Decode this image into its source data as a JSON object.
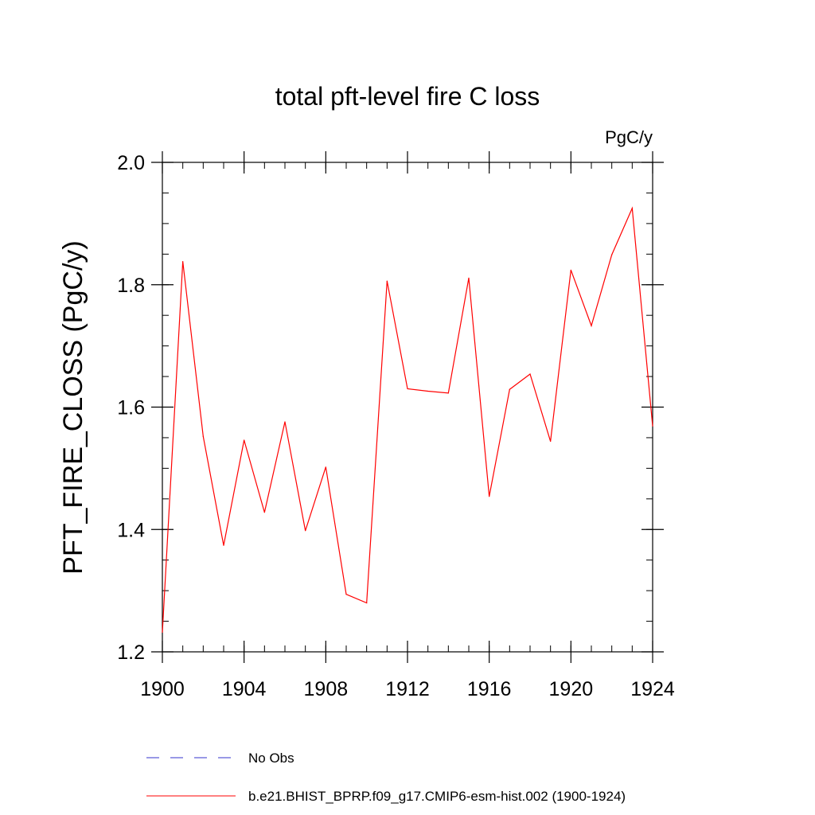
{
  "chart_data": {
    "type": "line",
    "title": "total pft-level fire C loss",
    "units": "PgC/y",
    "xlabel": "",
    "ylabel": "PFT_FIRE_CLOSS  (PgC/y)",
    "xlim": [
      1900,
      1924
    ],
    "ylim": [
      1.2,
      2.0
    ],
    "x_ticks": [
      1900,
      1904,
      1908,
      1912,
      1916,
      1920,
      1924
    ],
    "y_ticks": [
      "1.2",
      "1.4",
      "1.6",
      "1.8",
      "2.0"
    ],
    "x_minor_step": 1,
    "y_minor_step": 0.05,
    "series": [
      {
        "name": "b.e21.BHIST_BPRP.f09_g17.CMIP6-esm-hist.002 (1900-1924)",
        "color": "#ff0000",
        "style": "solid",
        "x": [
          1900,
          1901,
          1902,
          1903,
          1904,
          1905,
          1906,
          1907,
          1908,
          1909,
          1910,
          1911,
          1912,
          1913,
          1914,
          1915,
          1916,
          1917,
          1918,
          1919,
          1920,
          1921,
          1922,
          1923,
          1924
        ],
        "values": [
          1.232,
          1.838,
          1.552,
          1.374,
          1.546,
          1.428,
          1.576,
          1.398,
          1.502,
          1.294,
          1.28,
          1.806,
          1.63,
          1.626,
          1.623,
          1.811,
          1.454,
          1.629,
          1.654,
          1.544,
          1.824,
          1.733,
          1.849,
          1.925,
          1.569
        ]
      }
    ],
    "legend": [
      {
        "label": "No Obs",
        "color": "#3333cc",
        "style": "dashed"
      },
      {
        "label": "b.e21.BHIST_BPRP.f09_g17.CMIP6-esm-hist.002 (1900-1924)",
        "color": "#ff0000",
        "style": "solid"
      }
    ]
  }
}
